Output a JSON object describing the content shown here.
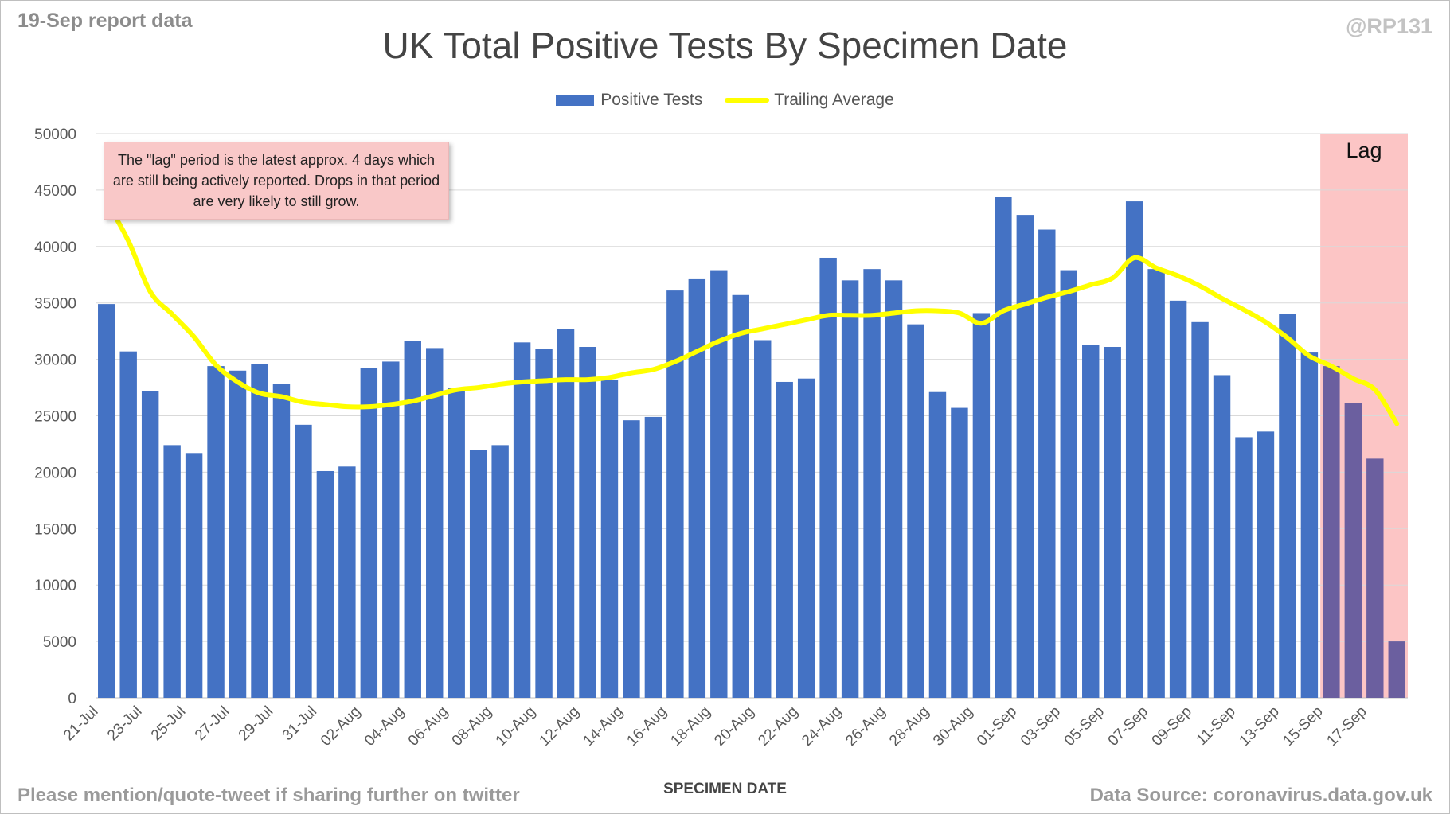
{
  "header": {
    "report_label": "19-Sep report data",
    "handle": "@RP131"
  },
  "footer": {
    "left_text": "Please mention/quote-tweet if sharing further on twitter",
    "right_text": "Data Source: coronavirus.data.gov.uk"
  },
  "annotation": {
    "note": "The \"lag\" period is the latest approx. 4 days which are still being actively reported.  Drops in that period are very likely to still grow.",
    "lag_label": "Lag"
  },
  "colors": {
    "bar": "#4472c4",
    "trailing_average": "#ffff00",
    "lag_shade": "#fcc5c5",
    "lag_bar": "#6b5f9f",
    "grid": "#d9d9d9",
    "axis_text": "#595959"
  },
  "chart_data": {
    "type": "bar",
    "title": "UK Total Positive Tests By Specimen Date",
    "xlabel": "SPECIMEN DATE",
    "ylabel": "",
    "ylim": [
      0,
      50000
    ],
    "yticks": [
      0,
      5000,
      10000,
      15000,
      20000,
      25000,
      30000,
      35000,
      40000,
      45000,
      50000
    ],
    "grid": true,
    "legend_position": "top-center",
    "lag_start_index": 56,
    "categories": [
      "21-Jul",
      "22-Jul",
      "23-Jul",
      "24-Jul",
      "25-Jul",
      "26-Jul",
      "27-Jul",
      "28-Jul",
      "29-Jul",
      "30-Jul",
      "31-Jul",
      "01-Aug",
      "02-Aug",
      "03-Aug",
      "04-Aug",
      "05-Aug",
      "06-Aug",
      "07-Aug",
      "08-Aug",
      "09-Aug",
      "10-Aug",
      "11-Aug",
      "12-Aug",
      "13-Aug",
      "14-Aug",
      "15-Aug",
      "16-Aug",
      "17-Aug",
      "18-Aug",
      "19-Aug",
      "20-Aug",
      "21-Aug",
      "22-Aug",
      "23-Aug",
      "24-Aug",
      "25-Aug",
      "26-Aug",
      "27-Aug",
      "28-Aug",
      "29-Aug",
      "30-Aug",
      "31-Aug",
      "01-Sep",
      "02-Sep",
      "03-Sep",
      "04-Sep",
      "05-Sep",
      "06-Sep",
      "07-Sep",
      "08-Sep",
      "09-Sep",
      "10-Sep",
      "11-Sep",
      "12-Sep",
      "13-Sep",
      "14-Sep",
      "15-Sep",
      "16-Sep",
      "17-Sep",
      "18-Sep"
    ],
    "series": [
      {
        "name": "Positive Tests",
        "type": "bar",
        "values": [
          34900,
          30700,
          27200,
          22400,
          21700,
          29400,
          29000,
          29600,
          27800,
          24200,
          20100,
          20500,
          29200,
          29800,
          31600,
          31000,
          27500,
          22000,
          22400,
          31500,
          30900,
          32700,
          31100,
          28200,
          24600,
          24900,
          36100,
          37100,
          37900,
          35700,
          31700,
          28000,
          28300,
          39000,
          37000,
          38000,
          37000,
          33100,
          27100,
          25700,
          34100,
          44400,
          42800,
          41500,
          37900,
          31300,
          31100,
          44000,
          38000,
          35200,
          33300,
          28600,
          23100,
          23600,
          34000,
          30600,
          29400,
          26100,
          21200,
          5000
        ]
      },
      {
        "name": "Trailing Average",
        "type": "line",
        "values": [
          44000,
          40500,
          36000,
          34000,
          32000,
          29500,
          28000,
          27000,
          26700,
          26200,
          26000,
          25800,
          25800,
          26000,
          26300,
          26800,
          27300,
          27500,
          27800,
          28000,
          28100,
          28200,
          28200,
          28400,
          28800,
          29100,
          29800,
          30700,
          31600,
          32300,
          32700,
          33100,
          33500,
          33900,
          33900,
          33900,
          34100,
          34300,
          34300,
          34100,
          33200,
          34300,
          34900,
          35500,
          36000,
          36600,
          37200,
          39000,
          38100,
          37400,
          36500,
          35400,
          34400,
          33300,
          31900,
          30300,
          29400,
          28300,
          27300,
          24300
        ]
      }
    ]
  }
}
